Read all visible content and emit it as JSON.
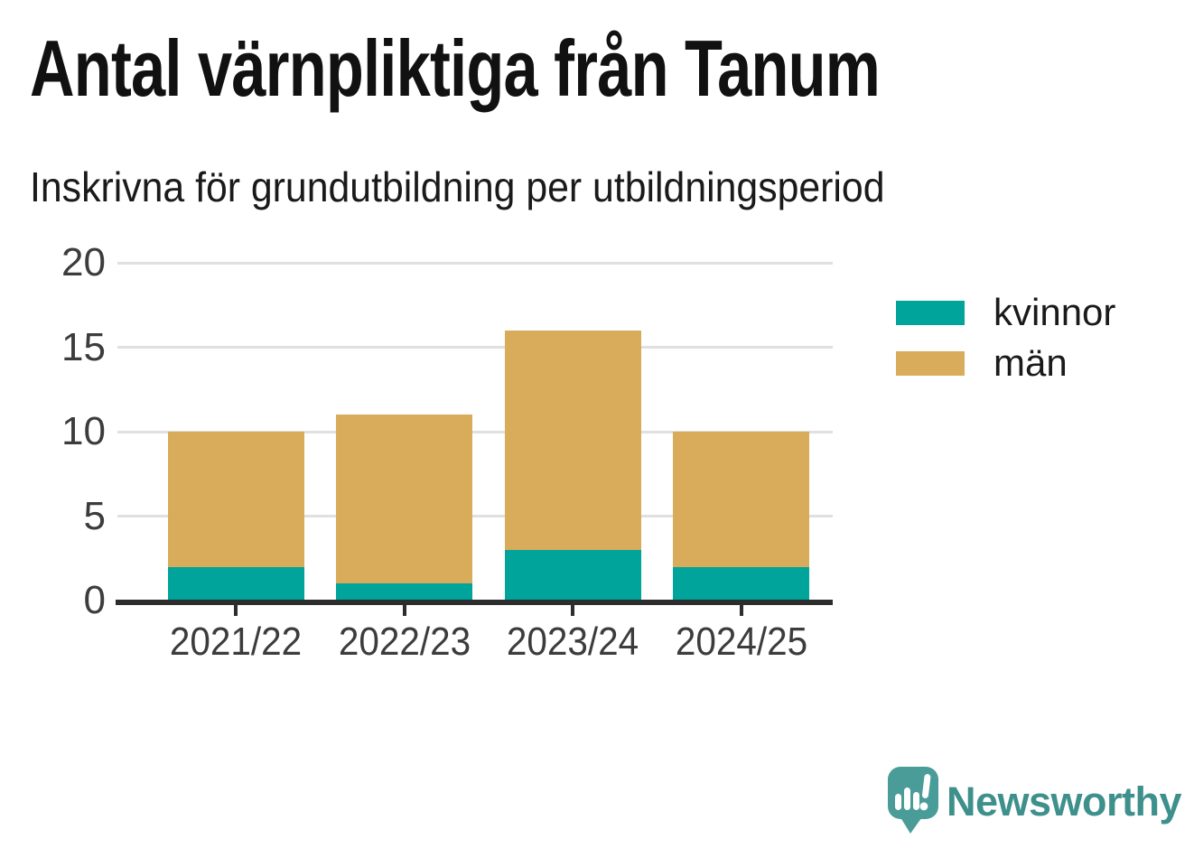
{
  "title": "Antal värnpliktiga från Tanum",
  "subtitle": "Inskrivna för grundutbildning per utbildningsperiod",
  "chart_data": {
    "type": "bar",
    "stacked": true,
    "categories": [
      "2021/22",
      "2022/23",
      "2023/24",
      "2024/25"
    ],
    "series": [
      {
        "name": "kvinnor",
        "color": "#00a49a",
        "values": [
          2,
          1,
          3,
          2
        ]
      },
      {
        "name": "män",
        "color": "#d9ac5c",
        "values": [
          8,
          10,
          13,
          8
        ]
      }
    ],
    "totals": [
      10,
      11,
      16,
      10
    ],
    "title": "Antal värnpliktiga från Tanum",
    "subtitle": "Inskrivna för grundutbildning per utbildningsperiod",
    "xlabel": "",
    "ylabel": "",
    "ylim": [
      0,
      20
    ],
    "yticks": [
      0,
      5,
      10,
      15,
      20
    ],
    "grid": true,
    "legend_position": "right"
  },
  "legend": {
    "items": [
      {
        "label": "kvinnor",
        "color": "#00a49a"
      },
      {
        "label": "män",
        "color": "#d9ac5c"
      }
    ]
  },
  "branding": {
    "logo_text": "Newsworthy",
    "logo_icon": "newsworthy-speech-bubble-barchart-icon",
    "text_color": "#3e908c",
    "icon_color": "#4a9c98"
  },
  "colors": {
    "kvinnor": "#00a49a",
    "man": "#d9ac5c",
    "gridline": "#e0e0e0",
    "axis": "#2d2d2d",
    "tick_text": "#3c3c3c",
    "title_text": "#111111"
  }
}
